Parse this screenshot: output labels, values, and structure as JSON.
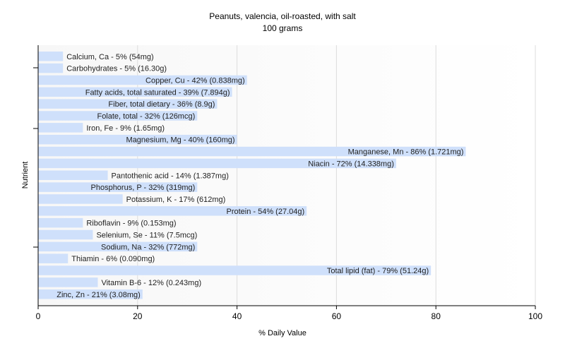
{
  "chart_data": {
    "type": "bar",
    "orientation": "horizontal",
    "title": "Peanuts, valencia, oil-roasted, with salt",
    "subtitle": "100 grams",
    "xlabel": "% Daily Value",
    "ylabel": "Nutrient",
    "xlim": [
      0,
      100
    ],
    "xticks": [
      0,
      20,
      40,
      60,
      80,
      100
    ],
    "grid": true,
    "bar_color": "#cfe0fb",
    "categories": [
      "Calcium, Ca",
      "Carbohydrates",
      "Copper, Cu",
      "Fatty acids, total saturated",
      "Fiber, total dietary",
      "Folate, total",
      "Iron, Fe",
      "Magnesium, Mg",
      "Manganese, Mn",
      "Niacin",
      "Pantothenic acid",
      "Phosphorus, P",
      "Potassium, K",
      "Protein",
      "Riboflavin",
      "Selenium, Se",
      "Sodium, Na",
      "Thiamin",
      "Total lipid (fat)",
      "Vitamin B-6",
      "Zinc, Zn"
    ],
    "values": [
      5,
      5,
      42,
      39,
      36,
      32,
      9,
      40,
      86,
      72,
      14,
      32,
      17,
      54,
      9,
      11,
      32,
      6,
      79,
      12,
      21
    ],
    "labels": [
      "Calcium, Ca - 5% (54mg)",
      "Carbohydrates - 5% (16.30g)",
      "Copper, Cu - 42% (0.838mg)",
      "Fatty acids, total saturated - 39% (7.894g)",
      "Fiber, total dietary - 36% (8.9g)",
      "Folate, total - 32% (126mcg)",
      "Iron, Fe - 9% (1.65mg)",
      "Magnesium, Mg - 40% (160mg)",
      "Manganese, Mn - 86% (1.721mg)",
      "Niacin - 72% (14.338mg)",
      "Pantothenic acid - 14% (1.387mg)",
      "Phosphorus, P - 32% (319mg)",
      "Potassium, K - 17% (612mg)",
      "Protein - 54% (27.04g)",
      "Riboflavin - 9% (0.153mg)",
      "Selenium, Se - 11% (7.5mcg)",
      "Sodium, Na - 32% (772mg)",
      "Thiamin - 6% (0.090mg)",
      "Total lipid (fat) - 79% (51.24g)",
      "Vitamin B-6 - 12% (0.243mg)",
      "Zinc, Zn - 21% (3.08mg)"
    ]
  }
}
